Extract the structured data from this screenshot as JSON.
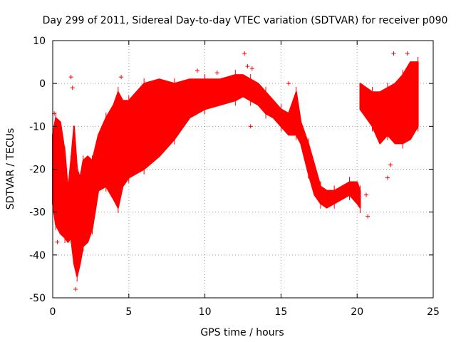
{
  "chart_data": {
    "type": "scatter",
    "title": "Day 299 of 2011, Sidereal Day-to-day VTEC variation (SDTVAR) for receiver p090",
    "xlabel": "GPS time / hours",
    "ylabel": "SDTVAR / TECUs",
    "xlim": [
      0,
      25
    ],
    "ylim": [
      -50,
      10
    ],
    "xticks": [
      0,
      5,
      10,
      15,
      20,
      25
    ],
    "yticks": [
      -50,
      -40,
      -30,
      -20,
      -10,
      0,
      10
    ],
    "xtick_labels": [
      "0",
      "5",
      "10",
      "15",
      "20",
      "25"
    ],
    "ytick_labels": [
      "-50",
      "-40",
      "-30",
      "-20",
      "-10",
      "0",
      "10"
    ],
    "grid": true,
    "marker": "+",
    "series": [
      {
        "name": "SDTVAR",
        "color": "#ff0000",
        "band": [
          {
            "x": 0.0,
            "low": -28,
            "high": -12
          },
          {
            "x": 0.2,
            "low": -33,
            "high": -8
          },
          {
            "x": 0.5,
            "low": -35,
            "high": -9
          },
          {
            "x": 0.8,
            "low": -36,
            "high": -16
          },
          {
            "x": 1.0,
            "low": -37,
            "high": -25
          },
          {
            "x": 1.2,
            "low": -36,
            "high": -18
          },
          {
            "x": 1.4,
            "low": -42,
            "high": -10
          },
          {
            "x": 1.6,
            "low": -45,
            "high": -20
          },
          {
            "x": 1.8,
            "low": -42,
            "high": -22
          },
          {
            "x": 2.0,
            "low": -38,
            "high": -18
          },
          {
            "x": 2.3,
            "low": -37,
            "high": -17
          },
          {
            "x": 2.6,
            "low": -34,
            "high": -18
          },
          {
            "x": 3.0,
            "low": -25,
            "high": -12
          },
          {
            "x": 3.5,
            "low": -24,
            "high": -8
          },
          {
            "x": 4.0,
            "low": -27,
            "high": -5
          },
          {
            "x": 4.3,
            "low": -29,
            "high": -2
          },
          {
            "x": 4.6,
            "low": -24,
            "high": -4
          },
          {
            "x": 5.0,
            "low": -22,
            "high": -4
          },
          {
            "x": 5.5,
            "low": -21,
            "high": -2
          },
          {
            "x": 6.0,
            "low": -20,
            "high": 0
          },
          {
            "x": 7.0,
            "low": -17,
            "high": 1
          },
          {
            "x": 8.0,
            "low": -13,
            "high": 0
          },
          {
            "x": 9.0,
            "low": -8,
            "high": 1
          },
          {
            "x": 10.0,
            "low": -6,
            "high": 1
          },
          {
            "x": 11.0,
            "low": -5,
            "high": 1
          },
          {
            "x": 12.0,
            "low": -4,
            "high": 2
          },
          {
            "x": 12.5,
            "low": -3,
            "high": 2
          },
          {
            "x": 13.0,
            "low": -4,
            "high": 1
          },
          {
            "x": 13.5,
            "low": -5,
            "high": 0
          },
          {
            "x": 14.0,
            "low": -7,
            "high": -2
          },
          {
            "x": 14.5,
            "low": -8,
            "high": -4
          },
          {
            "x": 15.0,
            "low": -10,
            "high": -6
          },
          {
            "x": 15.5,
            "low": -12,
            "high": -7
          },
          {
            "x": 16.0,
            "low": -12,
            "high": -2
          },
          {
            "x": 16.3,
            "low": -14,
            "high": -9
          },
          {
            "x": 16.8,
            "low": -21,
            "high": -14
          },
          {
            "x": 17.2,
            "low": -26,
            "high": -19
          },
          {
            "x": 17.6,
            "low": -28,
            "high": -24
          },
          {
            "x": 18.0,
            "low": -29,
            "high": -25
          },
          {
            "x": 18.5,
            "low": -28,
            "high": -25
          },
          {
            "x": 19.0,
            "low": -27,
            "high": -24
          },
          {
            "x": 19.5,
            "low": -26,
            "high": -23
          },
          {
            "x": 20.0,
            "low": -28,
            "high": -23
          },
          {
            "x": 20.2,
            "low": -29,
            "high": -25
          }
        ],
        "band2": [
          {
            "x": 20.2,
            "low": -6,
            "high": 0
          },
          {
            "x": 21.0,
            "low": -10,
            "high": -2
          },
          {
            "x": 21.5,
            "low": -14,
            "high": -2
          },
          {
            "x": 22.0,
            "low": -12,
            "high": -1
          },
          {
            "x": 22.5,
            "low": -14,
            "high": 0
          },
          {
            "x": 23.0,
            "low": -14,
            "high": 2
          },
          {
            "x": 23.5,
            "low": -13,
            "high": 5
          },
          {
            "x": 24.0,
            "low": -10,
            "high": 5
          }
        ],
        "outliers": [
          {
            "x": 0.1,
            "y": -7
          },
          {
            "x": 0.3,
            "y": -37
          },
          {
            "x": 1.2,
            "y": 1.5
          },
          {
            "x": 1.3,
            "y": -1
          },
          {
            "x": 1.5,
            "y": -48
          },
          {
            "x": 3.3,
            "y": -23
          },
          {
            "x": 4.5,
            "y": 1.5
          },
          {
            "x": 9.5,
            "y": 3
          },
          {
            "x": 10.8,
            "y": 2.5
          },
          {
            "x": 12.6,
            "y": 7
          },
          {
            "x": 12.8,
            "y": 4
          },
          {
            "x": 13.0,
            "y": -10
          },
          {
            "x": 13.1,
            "y": 3.5
          },
          {
            "x": 15.5,
            "y": 0
          },
          {
            "x": 20.6,
            "y": -26
          },
          {
            "x": 20.7,
            "y": -31
          },
          {
            "x": 22.0,
            "y": -22
          },
          {
            "x": 22.4,
            "y": 7
          },
          {
            "x": 22.2,
            "y": -19
          },
          {
            "x": 23.3,
            "y": 7
          }
        ]
      }
    ]
  }
}
